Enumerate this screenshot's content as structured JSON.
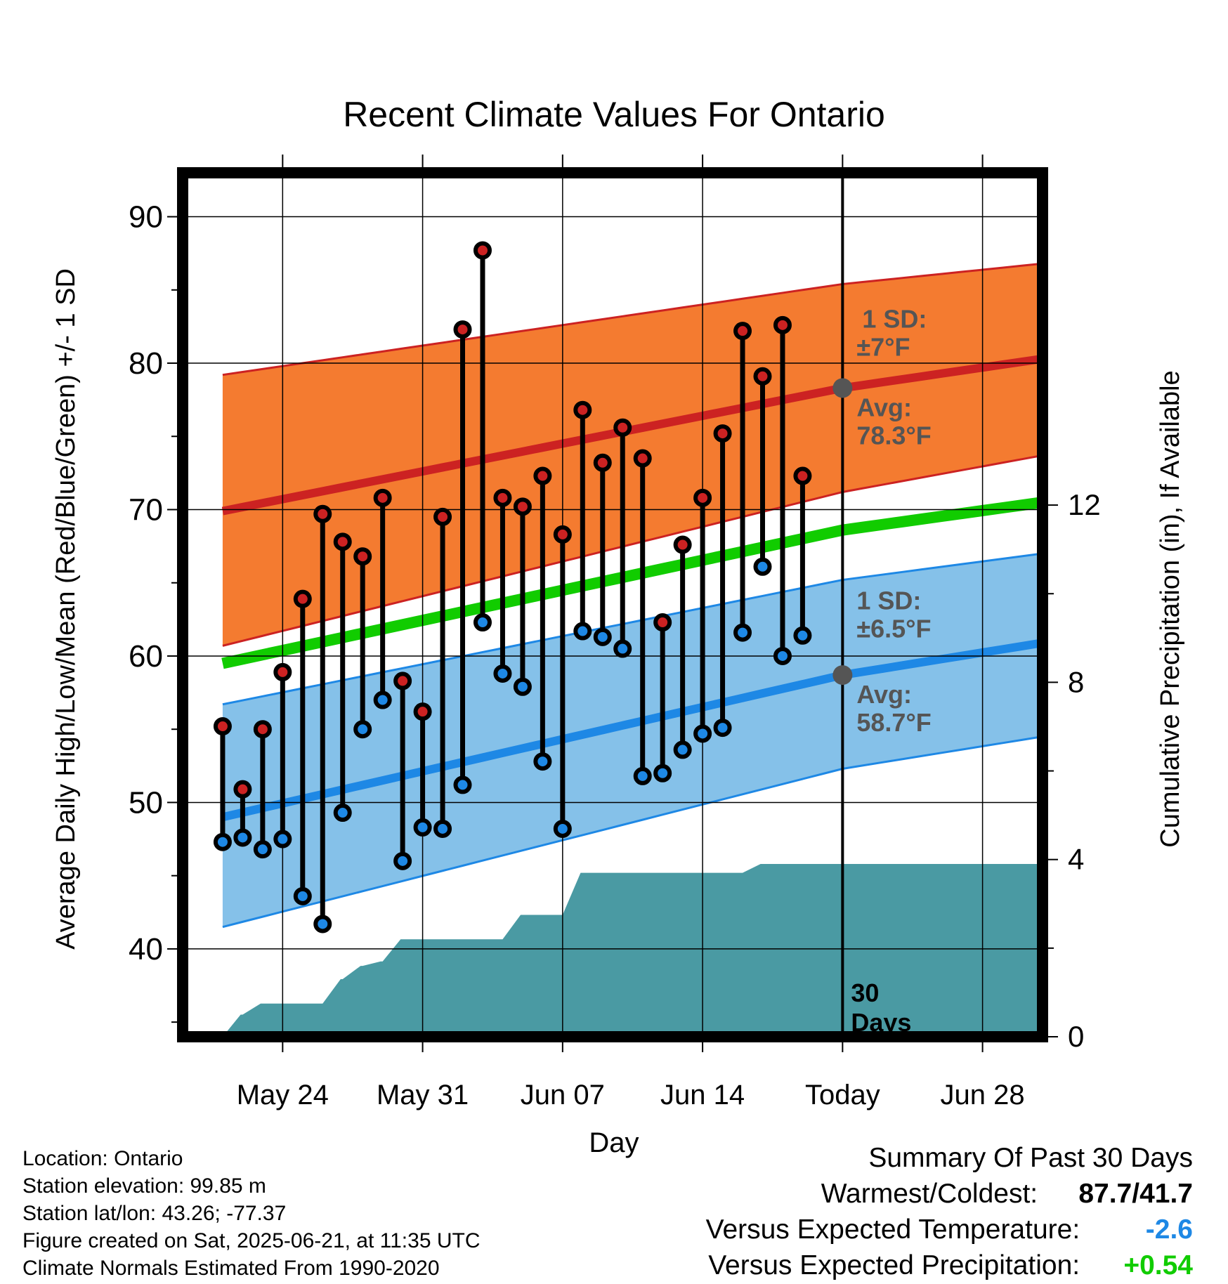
{
  "colors": {
    "high_band": "#f47b30",
    "high_band_edge": "#cc2222",
    "high_mean": "#cc2222",
    "low_band": "#85c1e9",
    "low_band_edge": "#1e88e5",
    "low_mean": "#1e88e5",
    "daily_mean": "#11cc00",
    "precip": "#4a9aa3",
    "high_marker": "#cc2222",
    "low_marker": "#1e88e5",
    "avg_marker": "#555555",
    "annotation": "#555555",
    "anomaly_temp": "#1e88e5",
    "anomaly_precip": "#11cc00"
  },
  "chart_data": {
    "type": "line",
    "title": "Recent Climate Values For Ontario",
    "xlabel": "Day",
    "ylabel": "Average Daily High/Low/Mean (Red/Blue/Green) +/- 1 SD",
    "y2label": "Cumulative Precipitation (in), If Available",
    "ylim": [
      34,
      93
    ],
    "y2lim": [
      0,
      19.5
    ],
    "xlim": [
      "2025-05-19",
      "2025-07-01"
    ],
    "yticks": [
      40,
      50,
      60,
      70,
      80,
      90
    ],
    "y2ticks": [
      0,
      4,
      8,
      12
    ],
    "xticks": [
      {
        "date": "2025-05-24",
        "label": "May 24"
      },
      {
        "date": "2025-05-31",
        "label": "May 31"
      },
      {
        "date": "2025-06-07",
        "label": "Jun 07"
      },
      {
        "date": "2025-06-14",
        "label": "Jun 14"
      },
      {
        "date": "2025-06-21",
        "label": "Today"
      },
      {
        "date": "2025-06-28",
        "label": "Jun 28"
      }
    ],
    "grid": true,
    "today": "2025-06-21",
    "normals_x": [
      "2025-05-21",
      "2025-06-21",
      "2025-07-01"
    ],
    "normal_high": [
      69.9,
      78.3,
      80.3
    ],
    "normal_high_upper": [
      79.2,
      85.4,
      86.8
    ],
    "normal_high_lower": [
      60.7,
      71.2,
      73.7
    ],
    "normal_mean": [
      59.5,
      68.6,
      70.5
    ],
    "normal_low": [
      49.0,
      58.7,
      60.9
    ],
    "normal_low_upper": [
      56.7,
      65.2,
      67.0
    ],
    "normal_low_lower": [
      41.5,
      52.3,
      54.5
    ],
    "daily_dates": [
      "2025-05-21",
      "2025-05-22",
      "2025-05-23",
      "2025-05-24",
      "2025-05-25",
      "2025-05-26",
      "2025-05-27",
      "2025-05-28",
      "2025-05-29",
      "2025-05-30",
      "2025-05-31",
      "2025-06-01",
      "2025-06-02",
      "2025-06-03",
      "2025-06-04",
      "2025-06-05",
      "2025-06-06",
      "2025-06-07",
      "2025-06-08",
      "2025-06-09",
      "2025-06-10",
      "2025-06-11",
      "2025-06-12",
      "2025-06-13",
      "2025-06-14",
      "2025-06-15",
      "2025-06-16",
      "2025-06-17",
      "2025-06-18",
      "2025-06-19",
      "2025-06-20"
    ],
    "series": [
      {
        "name": "High",
        "values": [
          55.2,
          50.9,
          55.0,
          58.9,
          63.9,
          69.7,
          67.8,
          66.8,
          70.8,
          58.3,
          56.2,
          69.5,
          82.3,
          87.7,
          70.8,
          70.2,
          72.3,
          68.3,
          76.8,
          73.2,
          75.6,
          73.5,
          62.3,
          67.6,
          70.8,
          75.2,
          82.2,
          79.1,
          82.6,
          72.3,
          null
        ]
      },
      {
        "name": "Low",
        "values": [
          47.3,
          47.6,
          46.8,
          47.5,
          43.6,
          41.7,
          49.3,
          55.0,
          57.0,
          46.0,
          48.3,
          48.2,
          51.2,
          62.3,
          58.8,
          57.9,
          52.8,
          48.2,
          61.7,
          61.3,
          60.5,
          51.8,
          52.0,
          53.6,
          54.7,
          55.1,
          61.6,
          66.1,
          60.0,
          61.4,
          null
        ]
      },
      {
        "name": "Cumulative Precipitation",
        "axis": "y2",
        "values": [
          0.0,
          0.5,
          0.75,
          0.75,
          0.75,
          0.75,
          1.3,
          1.6,
          1.7,
          2.2,
          2.2,
          2.2,
          2.2,
          2.2,
          2.2,
          2.75,
          2.75,
          2.75,
          3.7,
          3.7,
          3.7,
          3.7,
          3.7,
          3.7,
          3.7,
          3.7,
          3.7,
          3.9,
          3.9,
          3.9,
          3.9
        ]
      }
    ],
    "precip_final": 3.9,
    "annotations": {
      "high_sd_label": "1 SD:",
      "high_sd_value": "±7°F",
      "high_avg_label": "Avg:",
      "high_avg_value": "78.3°F",
      "low_sd_label": "1 SD:",
      "low_sd_value": "±6.5°F",
      "low_avg_label": "Avg:",
      "low_avg_value": "58.7°F",
      "days_number": "30",
      "days_word": "Days"
    }
  },
  "footer": {
    "location": "Location: Ontario",
    "elevation": "Station elevation: 99.85 m",
    "latlon": "Station lat/lon: 43.26; -77.37",
    "created": "Figure created on Sat, 2025-06-21, at 11:35 UTC",
    "normals": "Climate Normals Estimated From 1990-2020"
  },
  "summary": {
    "title": "Summary Of Past 30 Days",
    "warm_cold_label": "Warmest/Coldest:",
    "warm_cold_value": "87.7/41.7",
    "temp_label": "Versus Expected Temperature:",
    "temp_value": "-2.6",
    "precip_label": "Versus Expected Precipitation:",
    "precip_value": "+0.54"
  }
}
